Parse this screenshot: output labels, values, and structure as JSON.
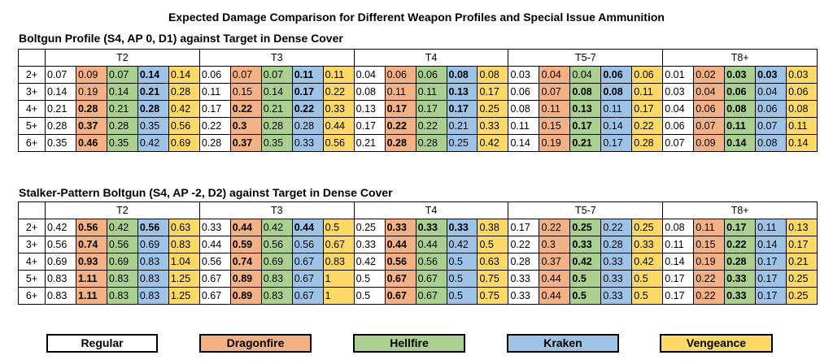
{
  "title": "Expected Damage Comparison for Different Weapon Profiles and Special Issue Ammunition",
  "colors": {
    "Regular": "#ffffff",
    "Dragonfire": "#f4b183",
    "Hellfire": "#a9d08e",
    "Kraken": "#9dc3e6",
    "Vengeance": "#ffd966"
  },
  "legend": [
    "Regular",
    "Dragonfire",
    "Hellfire",
    "Kraken",
    "Vengeance"
  ],
  "ammo_order": [
    "Regular",
    "Dragonfire",
    "Hellfire",
    "Kraken",
    "Vengeance"
  ],
  "tables": [
    {
      "title": "Boltgun Profile (S4, AP 0, D1) against Target in Dense Cover",
      "groups": [
        "T2",
        "T3",
        "T4",
        "T5-7",
        "T8+"
      ],
      "rows": [
        {
          "label": "2+",
          "values": [
            "0.07",
            "0.09",
            "0.07",
            "0.14",
            "0.14",
            "0.06",
            "0.07",
            "0.07",
            "0.11",
            "0.11",
            "0.04",
            "0.06",
            "0.06",
            "0.08",
            "0.08",
            "0.03",
            "0.04",
            "0.04",
            "0.06",
            "0.06",
            "0.01",
            "0.02",
            "0.03",
            "0.03",
            "0.03"
          ],
          "bold": [
            3,
            8,
            13,
            18,
            22,
            23
          ]
        },
        {
          "label": "3+",
          "values": [
            "0.14",
            "0.19",
            "0.14",
            "0.21",
            "0.28",
            "0.11",
            "0.15",
            "0.14",
            "0.17",
            "0.22",
            "0.08",
            "0.11",
            "0.11",
            "0.13",
            "0.17",
            "0.06",
            "0.07",
            "0.08",
            "0.08",
            "0.11",
            "0.03",
            "0.04",
            "0.06",
            "0.04",
            "0.06"
          ],
          "bold": [
            3,
            8,
            13,
            17,
            18,
            22
          ]
        },
        {
          "label": "4+",
          "values": [
            "0.21",
            "0.28",
            "0.21",
            "0.28",
            "0.42",
            "0.17",
            "0.22",
            "0.21",
            "0.22",
            "0.33",
            "0.13",
            "0.17",
            "0.17",
            "0.17",
            "0.25",
            "0.08",
            "0.11",
            "0.13",
            "0.11",
            "0.17",
            "0.04",
            "0.06",
            "0.08",
            "0.06",
            "0.08"
          ],
          "bold": [
            1,
            3,
            6,
            8,
            11,
            13,
            17,
            22
          ]
        },
        {
          "label": "5+",
          "values": [
            "0.28",
            "0.37",
            "0.28",
            "0.35",
            "0.56",
            "0.22",
            "0.3",
            "0.28",
            "0.28",
            "0.44",
            "0.17",
            "0.22",
            "0.22",
            "0.21",
            "0.33",
            "0.11",
            "0.15",
            "0.17",
            "0.14",
            "0.22",
            "0.06",
            "0.07",
            "0.11",
            "0.07",
            "0.11"
          ],
          "bold": [
            1,
            6,
            11,
            17,
            22
          ]
        },
        {
          "label": "6+",
          "values": [
            "0.35",
            "0.46",
            "0.35",
            "0.42",
            "0.69",
            "0.28",
            "0.37",
            "0.35",
            "0.33",
            "0.56",
            "0.21",
            "0.28",
            "0.28",
            "0.25",
            "0.42",
            "0.14",
            "0.19",
            "0.21",
            "0.17",
            "0.28",
            "0.07",
            "0.09",
            "0.14",
            "0.08",
            "0.14"
          ],
          "bold": [
            1,
            6,
            11,
            17,
            22
          ]
        }
      ]
    },
    {
      "title": "Stalker-Pattern Boltgun (S4, AP -2, D2) against Target in Dense Cover",
      "groups": [
        "T2",
        "T3",
        "T4",
        "T5-7",
        "T8+"
      ],
      "rows": [
        {
          "label": "2+",
          "values": [
            "0.42",
            "0.56",
            "0.42",
            "0.56",
            "0.63",
            "0.33",
            "0.44",
            "0.42",
            "0.44",
            "0.5",
            "0.25",
            "0.33",
            "0.33",
            "0.33",
            "0.38",
            "0.17",
            "0.22",
            "0.25",
            "0.22",
            "0.25",
            "0.08",
            "0.11",
            "0.17",
            "0.11",
            "0.13"
          ],
          "bold": [
            1,
            3,
            6,
            8,
            11,
            12,
            13,
            17,
            22
          ]
        },
        {
          "label": "3+",
          "values": [
            "0.56",
            "0.74",
            "0.56",
            "0.69",
            "0.83",
            "0.44",
            "0.59",
            "0.56",
            "0.56",
            "0.67",
            "0.33",
            "0.44",
            "0.44",
            "0.42",
            "0.5",
            "0.22",
            "0.3",
            "0.33",
            "0.28",
            "0.33",
            "0.11",
            "0.15",
            "0.22",
            "0.14",
            "0.17"
          ],
          "bold": [
            1,
            6,
            11,
            17,
            22
          ]
        },
        {
          "label": "4+",
          "values": [
            "0.69",
            "0.93",
            "0.69",
            "0.83",
            "1.04",
            "0.56",
            "0.74",
            "0.69",
            "0.67",
            "0.83",
            "0.42",
            "0.56",
            "0.56",
            "0.5",
            "0.63",
            "0.28",
            "0.37",
            "0.42",
            "0.33",
            "0.42",
            "0.14",
            "0.19",
            "0.28",
            "0.17",
            "0.21"
          ],
          "bold": [
            1,
            6,
            11,
            17,
            22
          ]
        },
        {
          "label": "5+",
          "values": [
            "0.83",
            "1.11",
            "0.83",
            "0.83",
            "1.25",
            "0.67",
            "0.89",
            "0.83",
            "0.67",
            "1",
            "0.5",
            "0.67",
            "0.67",
            "0.5",
            "0.75",
            "0.33",
            "0.44",
            "0.5",
            "0.33",
            "0.5",
            "0.17",
            "0.22",
            "0.33",
            "0.17",
            "0.25"
          ],
          "bold": [
            1,
            6,
            11,
            17,
            22
          ]
        },
        {
          "label": "6+",
          "values": [
            "0.83",
            "1.11",
            "0.83",
            "0.83",
            "1.25",
            "0.67",
            "0.89",
            "0.83",
            "0.67",
            "1",
            "0.5",
            "0.67",
            "0.67",
            "0.5",
            "0.75",
            "0.33",
            "0.44",
            "0.5",
            "0.33",
            "0.5",
            "0.17",
            "0.22",
            "0.33",
            "0.17",
            "0.25"
          ],
          "bold": [
            1,
            6,
            11,
            17,
            22
          ]
        }
      ]
    }
  ]
}
